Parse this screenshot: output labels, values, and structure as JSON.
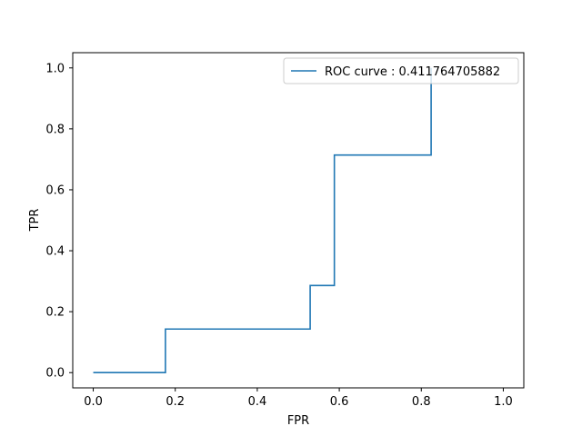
{
  "chart_data": {
    "type": "line",
    "title": "",
    "xlabel": "FPR",
    "ylabel": "TPR",
    "xlim": [
      -0.05,
      1.05
    ],
    "ylim": [
      -0.05,
      1.05
    ],
    "grid": false,
    "legend_position": "top-right",
    "x_ticks": [
      0.0,
      0.2,
      0.4,
      0.6,
      0.8,
      1.0
    ],
    "x_tick_labels": [
      "0.0",
      "0.2",
      "0.4",
      "0.6",
      "0.8",
      "1.0"
    ],
    "y_ticks": [
      0.0,
      0.2,
      0.4,
      0.6,
      0.8,
      1.0
    ],
    "y_tick_labels": [
      "0.0",
      "0.2",
      "0.4",
      "0.6",
      "0.8",
      "1.0"
    ],
    "series": [
      {
        "name": "ROC curve : 0.411764705882",
        "color": "#1f77b4",
        "x": [
          0.0,
          0.176,
          0.176,
          0.529,
          0.529,
          0.588,
          0.588,
          0.824,
          0.824
        ],
        "y": [
          0.0,
          0.0,
          0.143,
          0.143,
          0.286,
          0.286,
          0.714,
          0.714,
          1.0
        ]
      }
    ]
  }
}
